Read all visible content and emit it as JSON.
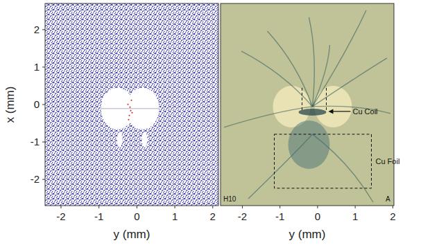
{
  "chart_data": [
    {
      "type": "scatter",
      "xlabel": "y (mm)",
      "ylabel": "x (mm)",
      "xlim": [
        -2.42,
        2.15
      ],
      "ylim": [
        -2.7,
        2.7
      ],
      "xticks": [
        -2,
        -1,
        0,
        1,
        2
      ],
      "yticks": [
        -2,
        -1,
        0,
        1,
        2
      ],
      "color": "#2b2ba8"
    },
    {
      "type": "image",
      "xlabel": "y (mm)",
      "xlim": [
        -2.58,
        2.03
      ],
      "ylim": [
        -2.7,
        2.7
      ],
      "xticks": [
        -2,
        -1,
        0,
        1,
        2
      ],
      "tick_labels": "x",
      "color": "#c9c89c",
      "annotations": [
        "Cu Coil",
        "Cu Foil",
        "H10",
        "A"
      ]
    }
  ]
}
